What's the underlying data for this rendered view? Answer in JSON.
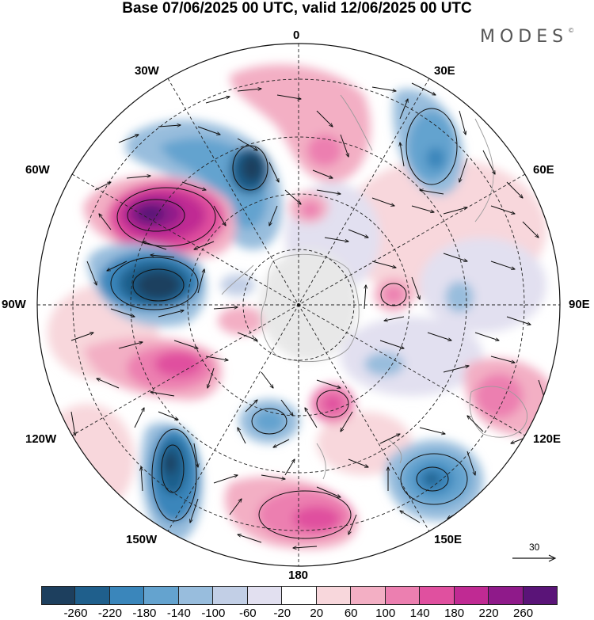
{
  "title": "Base 07/06/2025 00 UTC, valid 12/06/2025 00 UTC",
  "logo": "MODES",
  "logo_mark": "©",
  "longitude_labels": {
    "lon_0": "0",
    "lon_30e": "30E",
    "lon_60e": "60E",
    "lon_90e": "90E",
    "lon_120e": "120E",
    "lon_150e": "150E",
    "lon_180": "180",
    "lon_150w": "150W",
    "lon_120w": "120W",
    "lon_90w": "90W",
    "lon_60w": "60W",
    "lon_30w": "30W"
  },
  "reference_vector": "30",
  "colorbar": {
    "colors": [
      "#1d3f5e",
      "#1f5f8c",
      "#3a86bb",
      "#64a3cf",
      "#98bddd",
      "#c2cfe6",
      "#e2e0f0",
      "#ffffff",
      "#f8d7dc",
      "#f3afc4",
      "#ec7fb0",
      "#e0509f",
      "#c02a93",
      "#8f1a8a",
      "#5a1478"
    ],
    "ticks": [
      "-260",
      "-220",
      "-180",
      "-140",
      "-100",
      "-60",
      "-20",
      "20",
      "60",
      "100",
      "140",
      "180",
      "220",
      "260"
    ]
  }
}
